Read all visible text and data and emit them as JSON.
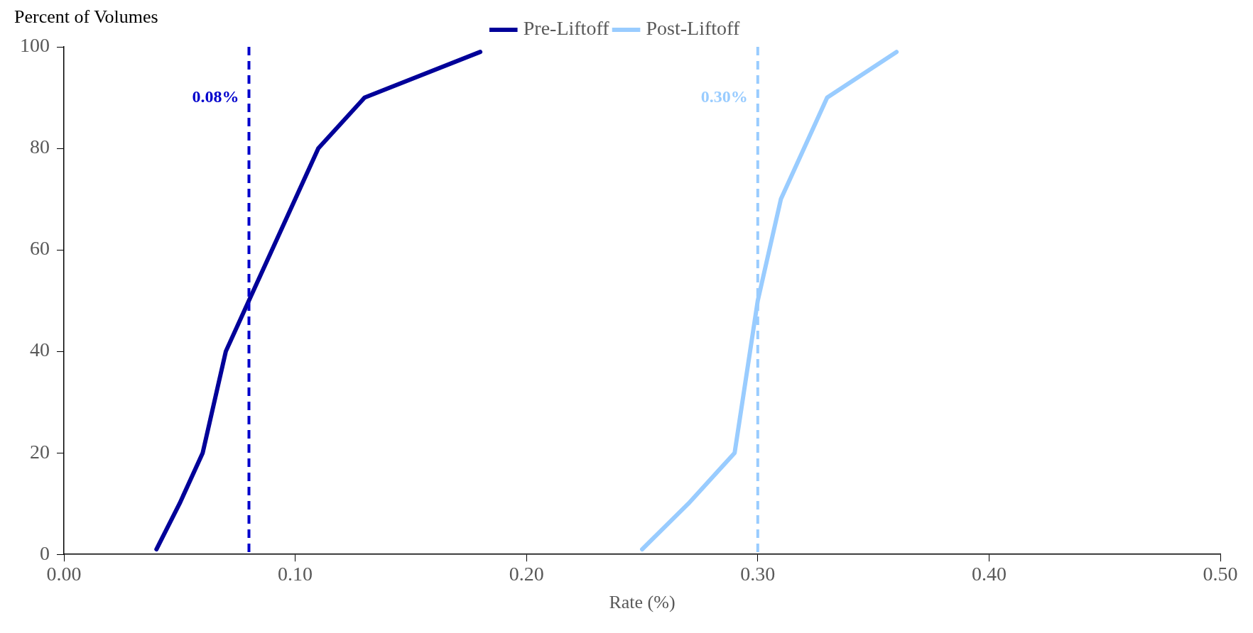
{
  "chart_data": {
    "type": "line",
    "xlabel": "Rate (%)",
    "ylabel": "Percent of Volumes",
    "series": [
      {
        "name": "Pre-Liftoff",
        "color": "#000099",
        "x": [
          0.04,
          0.05,
          0.06,
          0.07,
          0.08,
          0.11,
          0.13,
          0.18
        ],
        "values": [
          1,
          10,
          20,
          40,
          50,
          80,
          90,
          99
        ]
      },
      {
        "name": "Post-Liftoff",
        "color": "#99ccff",
        "x": [
          0.25,
          0.27,
          0.29,
          0.3,
          0.31,
          0.33,
          0.36
        ],
        "values": [
          1,
          10,
          20,
          50,
          70,
          90,
          99
        ]
      }
    ],
    "xlim": [
      0,
      0.5
    ],
    "xticks": [
      {
        "value": 0,
        "label": "0.00"
      },
      {
        "value": 0.1,
        "label": "0.10"
      },
      {
        "value": 0.2,
        "label": "0.20"
      },
      {
        "value": 0.3,
        "label": "0.30"
      },
      {
        "value": 0.4,
        "label": "0.40"
      },
      {
        "value": 0.5,
        "label": "0.50"
      }
    ],
    "ylim": [
      0,
      100
    ],
    "yticks": [
      0,
      20,
      40,
      60,
      80,
      100
    ],
    "ref_lines": [
      {
        "axis": "x",
        "value": 0.08,
        "label": "0.08%",
        "color": "#0000cc",
        "line_style": "dashed"
      },
      {
        "axis": "x",
        "value": 0.3,
        "label": "0.30%",
        "color": "#99ccff",
        "line_style": "dashed"
      }
    ],
    "grid": false,
    "legend": "top",
    "line_style": "solid",
    "marker": "none"
  }
}
